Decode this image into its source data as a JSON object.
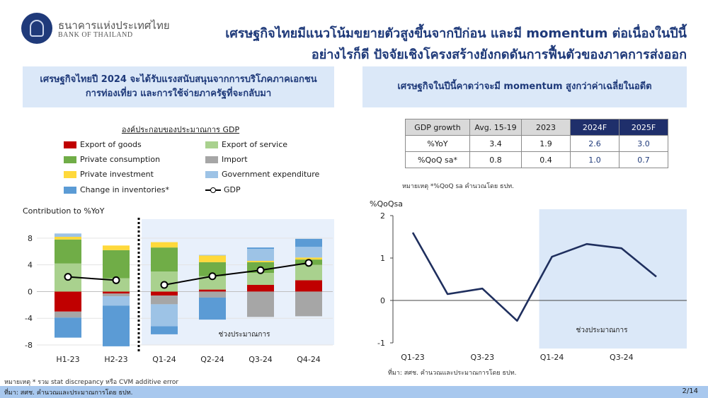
{
  "header": {
    "bank_name_th": "ธนาคารแห่งประเทศไทย",
    "bank_name_en": "BANK OF THAILAND",
    "title_line1": "เศรษฐกิจไทยมีแนวโน้มขยายตัวสูงขึ้นจากปีก่อน และมี momentum ต่อเนื่องในปีนี้",
    "title_line2": "อย่างไรก็ดี ปัจจัยเชิงโครงสร้างยังกดดันการฟื้นตัวของภาคการส่งออก",
    "logo_icon": "bot-emblem-icon"
  },
  "left_panel": {
    "heading": "เศรษฐกิจไทยปี 2024 จะได้รับแรงสนับสนุนจากการบริโภคภาคเอกชน การท่องเที่ยว และการใช้จ่ายภาครัฐที่จะกลับมา",
    "chart_title": "องค์ประกอบของประมาณการ GDP",
    "y_label": "Contribution to %YoY",
    "forecast_label": "ช่วงประมาณการ",
    "note": "หมายเหตุ * รวม stat discrepancy หรือ CVM additive error",
    "legend": [
      {
        "label": "Export of goods",
        "color": "#c00000"
      },
      {
        "label": "Export of service",
        "color": "#a9d18e"
      },
      {
        "label": "Private consumption",
        "color": "#70ad47"
      },
      {
        "label": "Import",
        "color": "#a6a6a6"
      },
      {
        "label": "Private investment",
        "color": "#ffd93b"
      },
      {
        "label": "Government expenditure",
        "color": "#9dc3e6"
      },
      {
        "label": "Change in inventories*",
        "color": "#5b9bd5"
      },
      {
        "label": "GDP",
        "color": "#000000"
      }
    ]
  },
  "right_panel": {
    "heading": "เศรษฐกิจในปีนี้คาดว่าจะมี momentum สูงกว่าค่าเฉลี่ยในอดีต",
    "table": {
      "headers": [
        "GDP growth",
        "Avg. 15-19",
        "2023",
        "2024F",
        "2025F"
      ],
      "rows": [
        [
          "%YoY",
          "3.4",
          "1.9",
          "2.6",
          "3.0"
        ],
        [
          "%QoQ sa*",
          "0.8",
          "0.4",
          "1.0",
          "0.7"
        ]
      ]
    },
    "table_note": "หมายเหตุ *%QoQ sa คำนวณโดย ธปท.",
    "y_label": "%QoQsa",
    "forecast_label": "ช่วงประมาณการ",
    "source": "ที่มา: สศช. คำนวณและประมาณการโดย ธปท."
  },
  "footer": {
    "source": "ที่มา: สศช. คำนวณและประมาณการโดย ธปท.",
    "page": "2/14"
  },
  "chart_data": [
    {
      "type": "bar",
      "stacked": true,
      "title": "องค์ประกอบของประมาณการ GDP",
      "ylabel": "Contribution to %YoY",
      "ylim": [
        -8,
        10
      ],
      "yticks": [
        -8,
        -4,
        0,
        4,
        8
      ],
      "categories": [
        "H1-23",
        "H2-23",
        "Q1-24",
        "Q2-24",
        "Q3-24",
        "Q4-24"
      ],
      "forecast_from": "Q1-24",
      "series": [
        {
          "name": "Export of goods",
          "color": "#c00000",
          "values": [
            -3.0,
            -0.3,
            -0.6,
            0.3,
            1.0,
            1.7
          ]
        },
        {
          "name": "Export of service",
          "color": "#a9d18e",
          "values": [
            4.2,
            2.0,
            3.0,
            2.0,
            1.8,
            2.3
          ]
        },
        {
          "name": "Private consumption",
          "color": "#70ad47",
          "values": [
            3.6,
            4.2,
            3.6,
            2.1,
            1.6,
            0.8
          ]
        },
        {
          "name": "Import",
          "color": "#a6a6a6",
          "values": [
            -0.9,
            -0.4,
            -1.3,
            -0.9,
            -3.8,
            -3.7
          ]
        },
        {
          "name": "Private investment",
          "color": "#ffd93b",
          "values": [
            0.4,
            0.7,
            0.8,
            1.0,
            0.2,
            0.3
          ]
        },
        {
          "name": "Government expenditure",
          "color": "#9dc3e6",
          "values": [
            0.5,
            -1.4,
            -3.3,
            0.1,
            1.8,
            1.6
          ]
        },
        {
          "name": "Change in inventories*",
          "color": "#5b9bd5",
          "values": [
            -3.0,
            -6.1,
            -1.2,
            -3.3,
            0.2,
            1.2
          ]
        }
      ],
      "line": {
        "name": "GDP",
        "values": [
          2.2,
          1.7,
          1.0,
          2.3,
          3.2,
          4.3
        ]
      }
    },
    {
      "type": "line",
      "ylabel": "%QoQsa",
      "ylim": [
        -1,
        2
      ],
      "yticks": [
        -1,
        0,
        1,
        2
      ],
      "x": [
        "Q1-23",
        "Q2-23",
        "Q3-23",
        "Q4-23",
        "Q1-24",
        "Q2-24",
        "Q3-24",
        "Q4-24"
      ],
      "xticklabels": [
        "Q1-23",
        "Q3-23",
        "Q1-24",
        "Q3-24"
      ],
      "forecast_from": "Q1-24",
      "series": [
        {
          "values": [
            1.6,
            0.15,
            0.28,
            -0.48,
            1.03,
            1.33,
            1.23,
            0.56
          ],
          "color": "#1f2f5e"
        }
      ]
    }
  ]
}
